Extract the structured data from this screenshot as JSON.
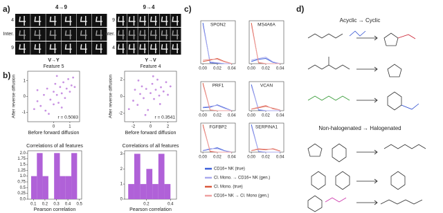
{
  "panel_labels": [
    "a)",
    "b)",
    "c)",
    "d)"
  ],
  "panel_a": {
    "groups": [
      {
        "title": "4→9",
        "rows": [
          "4",
          "Inter.",
          "9"
        ]
      },
      {
        "title": "9→4",
        "rows": [
          "9",
          "Inter.",
          "4"
        ]
      }
    ]
  },
  "panel_d": {
    "sections": [
      "Acyclic → Cyclic",
      "Non-halogenated → Halogenated"
    ]
  },
  "chart_data": [
    {
      "type": "scatter",
      "title": "V→Y",
      "subtitle": "Feature 5",
      "x_label": "Before forward diffusion",
      "y_label": "After reverse diffusion",
      "annotation": "r = 0.5083",
      "color": "#b163d6",
      "x": [
        -1.2,
        -1,
        -1,
        -0.8,
        -0.6,
        -0.5,
        -0.4,
        -0.2,
        0,
        0,
        0.1,
        0.2,
        0.3,
        0.4,
        0.5,
        0.6,
        0.7,
        0.8,
        0.9,
        1,
        1.1,
        1.2,
        1.3,
        -0.3,
        0.2,
        0.5
      ],
      "values": [
        -0.8,
        -0.3,
        0.4,
        -0.6,
        0.1,
        -0.9,
        0.5,
        -0.2,
        0.3,
        -0.5,
        0.8,
        0.1,
        -0.4,
        0.6,
        0.2,
        0.9,
        -0.1,
        0.5,
        1.1,
        0.3,
        0.7,
        1.2,
        0.6,
        -1.1,
        1.3,
        -0.7
      ],
      "xlim": [
        -1.6,
        1.6
      ],
      "ylim": [
        -1.6,
        1.6
      ],
      "xticks": [
        0,
        1
      ],
      "yticks": [
        -1,
        0,
        1
      ]
    },
    {
      "type": "scatter",
      "title": "Y→V",
      "subtitle": "Feature 4",
      "x_label": "Before forward diffusion",
      "y_label": "After reverse diffusion",
      "annotation": "r = 0.3541",
      "color": "#b163d6",
      "x": [
        -2.5,
        -2,
        -1.8,
        -1.5,
        -1.2,
        -1,
        -0.8,
        -0.5,
        -0.3,
        0,
        0.2,
        0.4,
        0.6,
        0.8,
        1,
        1.2,
        1.5,
        1.8,
        2,
        2.3,
        -0.6,
        0.3,
        1.1,
        -1.4
      ],
      "values": [
        -1.5,
        -0.5,
        0.8,
        -1,
        0.3,
        1.2,
        -0.2,
        0.9,
        -1.6,
        0.4,
        1.5,
        -0.3,
        0.8,
        2,
        0.1,
        1.1,
        0.6,
        1.7,
        0.2,
        1.2,
        -2.2,
        2.4,
        -0.9,
        1.9
      ],
      "xlim": [
        -3,
        3
      ],
      "ylim": [
        -3,
        3
      ],
      "xticks": [
        -2,
        0,
        2
      ],
      "yticks": [
        -2,
        0,
        2
      ]
    },
    {
      "type": "histogram",
      "title": "Correlations of all features",
      "x_label": "Pearson correlation",
      "color": "#b061d8",
      "bins": [
        0.08,
        0.13,
        0.18,
        0.23,
        0.28,
        0.33,
        0.38,
        0.43,
        0.48
      ],
      "values": [
        1,
        2,
        1,
        0,
        2,
        1,
        1,
        2
      ],
      "xlim": [
        0.05,
        0.52
      ],
      "ylim": [
        0,
        2.1
      ],
      "xticks": [
        0.1,
        0.2,
        0.3,
        0.4,
        0.5
      ],
      "yticks": [
        {
          "value": 0,
          "label": "0.0"
        },
        0.25,
        0.5,
        0.75,
        {
          "value": 1,
          "label": "1.0"
        },
        1.25,
        1.5,
        1.75,
        {
          "value": 2,
          "label": "2.0"
        }
      ]
    },
    {
      "type": "histogram",
      "title": "Correlations of all features",
      "x_label": "Pearson correlation",
      "color": "#b061d8",
      "bins": [
        0.05,
        0.1,
        0.15,
        0.2,
        0.25,
        0.3,
        0.35,
        0.4
      ],
      "values": [
        1,
        3,
        1,
        2,
        1,
        3,
        1
      ],
      "xlim": [
        0.02,
        0.45
      ],
      "ylim": [
        0,
        3.2
      ],
      "xticks": [
        0.2,
        0.4
      ],
      "yticks": [
        0,
        1,
        2,
        3
      ]
    },
    {
      "type": "line",
      "x": [
        0,
        0.01,
        0.02,
        0.03,
        0.04
      ],
      "xlim": [
        -0.003,
        0.045
      ],
      "ylim": [
        0,
        1
      ],
      "xticks": [
        {
          "value": 0,
          "label": "0.00"
        },
        {
          "value": 0.02,
          "label": "0.02"
        },
        {
          "value": 0.04,
          "label": "0.04"
        }
      ],
      "series": [
        {
          "name": "CD16+ NK (true)",
          "color": "#3b5fd9"
        },
        {
          "name": "Cl. Mono. → CD16+ NK (gen.)",
          "color": "#a9a9ee"
        },
        {
          "name": "Cl. Mono. (true)",
          "color": "#d9573b"
        },
        {
          "name": "CD16+ NK → Cl. Mono (gen.)",
          "color": "#eea0a0"
        }
      ],
      "panels": [
        {
          "title": "SPON2",
          "values": [
            [
              0.95,
              0.02,
              0.01,
              0,
              0
            ],
            [
              0.9,
              0.04,
              0.02,
              0,
              0
            ],
            [
              0.05,
              0.08,
              0.12,
              0.05,
              0
            ],
            [
              0.08,
              0.1,
              0.1,
              0.04,
              0
            ]
          ]
        },
        {
          "title": "MS4A6A",
          "values": [
            [
              0.05,
              0.1,
              0.12,
              0.03,
              0
            ],
            [
              0.08,
              0.12,
              0.15,
              0.04,
              0
            ],
            [
              0.95,
              0.02,
              0,
              0,
              0
            ],
            [
              0.9,
              0.03,
              0,
              0,
              0
            ]
          ]
        },
        {
          "title": "PRF1",
          "values": [
            [
              0.1,
              0.12,
              0.2,
              0.1,
              0
            ],
            [
              0.12,
              0.15,
              0.18,
              0.08,
              0
            ],
            [
              0.95,
              0.02,
              0,
              0,
              0
            ],
            [
              0.9,
              0.03,
              0,
              0,
              0
            ]
          ]
        },
        {
          "title": "VCAN",
          "values": [
            [
              0.9,
              0.02,
              0,
              0,
              0
            ],
            [
              0.85,
              0.04,
              0,
              0,
              0
            ],
            [
              0.05,
              0.1,
              0.15,
              0.08,
              0.02
            ],
            [
              0.06,
              0.12,
              0.18,
              0.06,
              0.02
            ]
          ]
        },
        {
          "title": "FGFBP2",
          "values": [
            [
              0.05,
              0.1,
              0.15,
              0.05,
              0
            ],
            [
              0.06,
              0.12,
              0.12,
              0.04,
              0
            ],
            [
              0.95,
              0.02,
              0,
              0,
              0
            ],
            [
              0.9,
              0.04,
              0,
              0,
              0
            ]
          ]
        },
        {
          "title": "SERPINA1",
          "values": [
            [
              0.95,
              0.02,
              0,
              0,
              0
            ],
            [
              0.9,
              0.03,
              0,
              0,
              0
            ],
            [
              0.05,
              0.1,
              0.08,
              0.12,
              0.04
            ],
            [
              0.06,
              0.12,
              0.1,
              0.1,
              0.03
            ]
          ]
        }
      ]
    }
  ]
}
